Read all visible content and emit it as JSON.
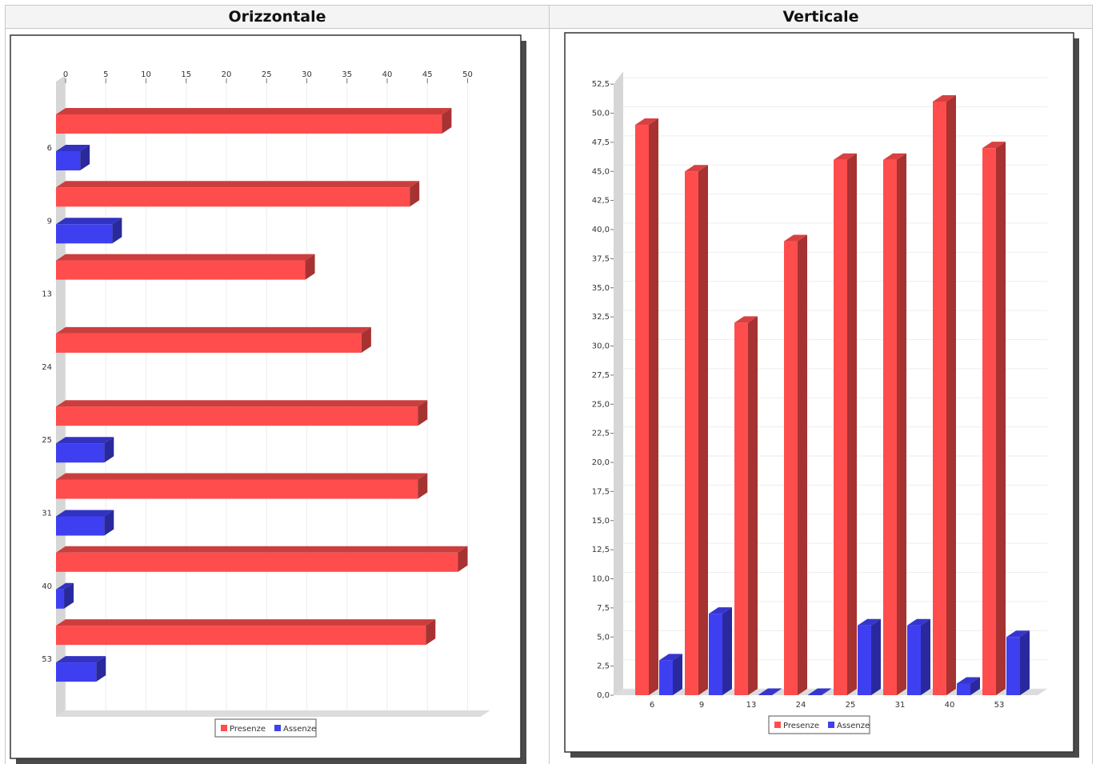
{
  "table": {
    "headers": [
      "Orizzontale",
      "Verticale"
    ]
  },
  "colors": {
    "presenze": "#ff4d4d",
    "assenze": "#3f3ff2"
  },
  "chart_data": [
    {
      "type": "bar",
      "orientation": "horizontal",
      "categories": [
        "6",
        "9",
        "13",
        "24",
        "25",
        "31",
        "40",
        "53"
      ],
      "series": [
        {
          "name": "Presenze",
          "values": [
            48,
            44,
            31,
            38,
            45,
            45,
            50,
            46
          ]
        },
        {
          "name": "Assenze",
          "values": [
            3,
            7,
            0,
            0,
            6,
            6,
            1,
            5
          ]
        }
      ],
      "ticks": [
        "0",
        "5",
        "10",
        "15",
        "20",
        "25",
        "30",
        "35",
        "40",
        "45",
        "50"
      ],
      "xlim": [
        0,
        50
      ],
      "grid": true,
      "legend": "bottom"
    },
    {
      "type": "bar",
      "orientation": "vertical",
      "categories": [
        "6",
        "9",
        "13",
        "24",
        "25",
        "31",
        "40",
        "53"
      ],
      "series": [
        {
          "name": "Presenze",
          "values": [
            49,
            45,
            32,
            39,
            46,
            46,
            51,
            47
          ]
        },
        {
          "name": "Assenze",
          "values": [
            3,
            7,
            0,
            0,
            6,
            6,
            1,
            5
          ]
        }
      ],
      "ticks": [
        "0,0",
        "2,5",
        "5,0",
        "7,5",
        "10,0",
        "12,5",
        "15,0",
        "17,5",
        "20,0",
        "22,5",
        "25,0",
        "27,5",
        "30,0",
        "32,5",
        "35,0",
        "37,5",
        "40,0",
        "42,5",
        "45,0",
        "47,5",
        "50,0",
        "52,5"
      ],
      "ylim": [
        0,
        52.5
      ],
      "grid": true,
      "legend": "bottom"
    }
  ]
}
